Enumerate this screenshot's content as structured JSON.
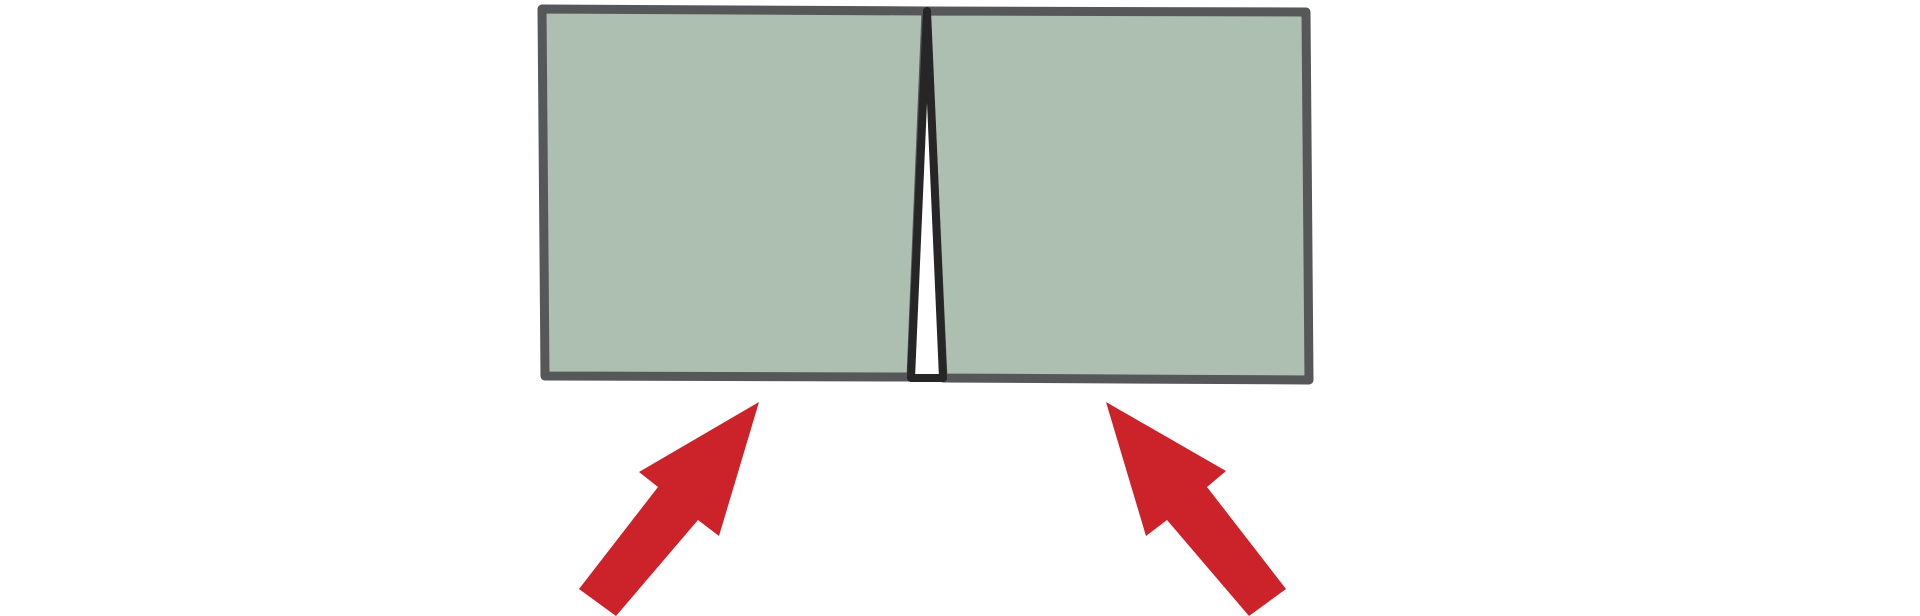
{
  "diagram": {
    "background": "#ffffff",
    "panel": {
      "fill": "#adbfb0",
      "stroke": "#555759"
    },
    "wedge": {
      "fill": "#ffffff",
      "stroke": "#262626"
    },
    "arrows": {
      "color": "#cc2229",
      "items": [
        {
          "name": "left-arrow",
          "direction": "up-right"
        },
        {
          "name": "right-arrow",
          "direction": "up-left"
        }
      ]
    }
  }
}
